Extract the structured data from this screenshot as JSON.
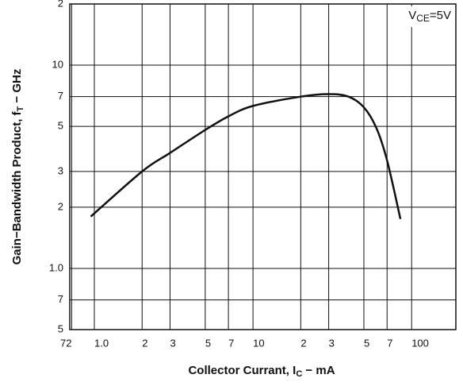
{
  "chart_data": {
    "type": "line",
    "y_label": {
      "text": "Gain−Bandwidth Product, f",
      "sub": "T",
      "rest": " − GHz"
    },
    "x_label": {
      "text": "Collector Currant, I",
      "sub": "C",
      "rest": " − mA"
    },
    "annotation": {
      "text": "V",
      "sub": "CE",
      "rest": "=5V"
    },
    "xscale": "log",
    "yscale": "log",
    "grid": true,
    "color": "#111111",
    "x": [
      0.95,
      2,
      3,
      5,
      7,
      10,
      20,
      30,
      40,
      50,
      60,
      70,
      85
    ],
    "values": [
      1.8,
      3.0,
      3.7,
      4.8,
      5.6,
      6.3,
      7.0,
      7.2,
      7.0,
      6.2,
      4.9,
      3.4,
      1.75
    ],
    "xlim": [
      0.7,
      190
    ],
    "ylim": [
      0.5,
      20
    ],
    "xticks": [
      {
        "value": 0.72,
        "label": "72"
      },
      {
        "value": 1,
        "label": "1.0"
      },
      2,
      3,
      5,
      7,
      10,
      {
        "value": 20,
        "label": "2"
      },
      {
        "value": 30,
        "label": "3"
      },
      {
        "value": 50,
        "label": "5"
      },
      {
        "value": 70,
        "label": "7"
      },
      100
    ],
    "yticks": [
      {
        "value": 20,
        "label": "2"
      },
      10,
      7,
      5,
      3,
      2,
      {
        "value": 1,
        "label": "1.0"
      },
      {
        "value": 0.7,
        "label": "7"
      },
      {
        "value": 0.5,
        "label": "5"
      }
    ]
  }
}
